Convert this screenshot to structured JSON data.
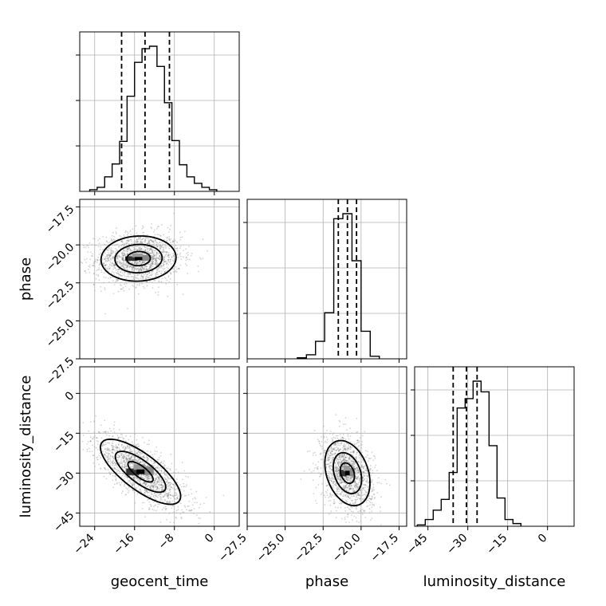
{
  "chart_data": {
    "type": "corner",
    "parameters": [
      "geocent_time",
      "phase",
      "luminosity_distance"
    ],
    "axis_labels": {
      "x": [
        "geocent_time",
        "phase",
        "luminosity_distance"
      ],
      "y": [
        "phase",
        "luminosity_distance"
      ]
    },
    "ranges": {
      "geocent_time": [
        -27,
        5
      ],
      "phase": [
        -27.5,
        -17
      ],
      "luminosity_distance": [
        -50,
        10
      ]
    },
    "ticks": {
      "geocent_time": [
        -24,
        -16,
        -8,
        0
      ],
      "phase": [
        -27.5,
        -25.0,
        -22.5,
        -20.0,
        -17.5
      ],
      "luminosity_distance": [
        -45,
        -30,
        -15,
        0
      ]
    },
    "tick_labels": {
      "geocent_time": [
        "−24",
        "−16",
        "−8",
        "0"
      ],
      "phase": [
        "−27.5",
        "−25.0",
        "−22.5",
        "−20.0",
        "−17.5"
      ],
      "luminosity_distance": [
        "−45",
        "−30",
        "−15",
        "0"
      ]
    },
    "grid": true,
    "histograms": [
      {
        "param": "geocent_time",
        "bin_edges": [
          -25,
          -23.5,
          -22,
          -20.5,
          -19,
          -17.5,
          -16,
          -14.5,
          -13,
          -11.5,
          -10,
          -8.5,
          -7,
          -5.5,
          -4,
          -2.5,
          -1,
          0.5
        ],
        "counts": [
          2,
          5,
          18,
          34,
          62,
          118,
          160,
          177,
          180,
          155,
          110,
          63,
          33,
          18,
          10,
          5,
          2
        ],
        "quantiles": [
          -18.6,
          -13.9,
          -9.0
        ]
      },
      {
        "param": "phase",
        "bin_edges": [
          -24.2,
          -23.6,
          -23.0,
          -22.4,
          -21.8,
          -21.2,
          -20.6,
          -20.0,
          -19.4,
          -18.8
        ],
        "counts": [
          2,
          8,
          35,
          92,
          280,
          290,
          196,
          55,
          5
        ],
        "quantiles": [
          -21.5,
          -20.9,
          -20.3
        ]
      },
      {
        "param": "luminosity_distance",
        "bin_edges": [
          -49,
          -46,
          -43,
          -40,
          -37,
          -34,
          -31,
          -28,
          -25,
          -22,
          -19,
          -16,
          -13,
          -10
        ],
        "counts": [
          1,
          5,
          12,
          20,
          40,
          88,
          95,
          108,
          100,
          60,
          21,
          5,
          2
        ],
        "quantiles": [
          -35.5,
          -30.5,
          -26.5
        ]
      }
    ],
    "scatter_density": [
      {
        "x": "geocent_time",
        "y": "phase",
        "mean": [
          -15.2,
          -20.9
        ],
        "std": [
          4.3,
          0.85
        ],
        "corr": 0.05,
        "n_points": 1600,
        "peak": [
          -17.0,
          -21.0
        ]
      },
      {
        "x": "geocent_time",
        "y": "luminosity_distance",
        "mean": [
          -14.8,
          -29.5
        ],
        "std": [
          4.6,
          7.0
        ],
        "corr": -0.75,
        "n_points": 1600,
        "peak": [
          -16.0,
          -27.5
        ]
      },
      {
        "x": "phase",
        "y": "luminosity_distance",
        "mean": [
          -20.9,
          -30.0
        ],
        "std": [
          0.85,
          7.0
        ],
        "corr": -0.3,
        "n_points": 1500,
        "peak": [
          -20.9,
          -28.0
        ]
      }
    ],
    "colors": {
      "line": "#000000",
      "points": "#555555",
      "grid": "#b0b0b0"
    }
  }
}
